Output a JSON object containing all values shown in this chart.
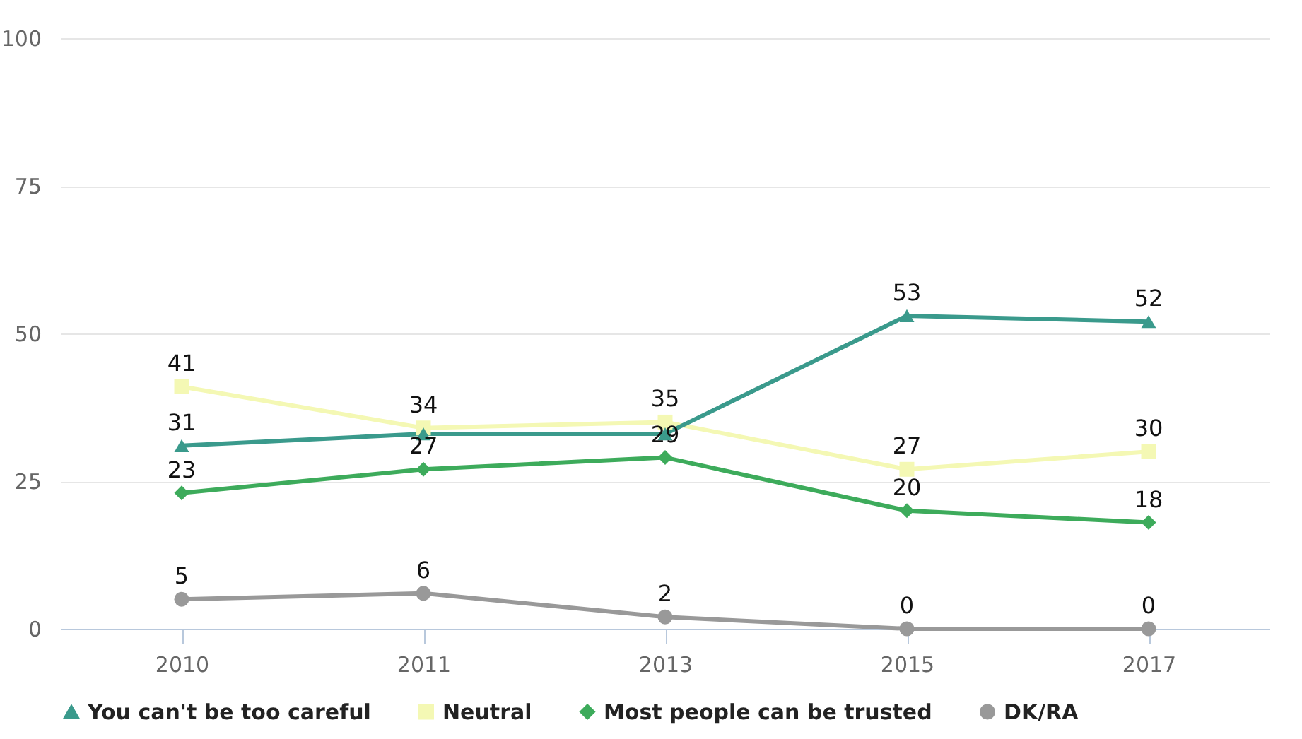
{
  "chart_data": {
    "type": "line",
    "categories": [
      "2010",
      "2011",
      "2013",
      "2015",
      "2017"
    ],
    "series": [
      {
        "name": "You can't be too careful",
        "color": "#3a9a8c",
        "marker": "triangle",
        "values": [
          31,
          33,
          33,
          53,
          52
        ],
        "value_labels": [
          "31",
          null,
          null,
          "53",
          "52"
        ]
      },
      {
        "name": "Neutral",
        "color": "#f4f8b4",
        "marker": "square",
        "values": [
          41,
          34,
          35,
          27,
          30
        ],
        "value_labels": [
          "41",
          "34",
          "35",
          "27",
          "30"
        ]
      },
      {
        "name": "Most people can be trusted",
        "color": "#3dab5b",
        "marker": "diamond",
        "values": [
          23,
          27,
          29,
          20,
          18
        ],
        "value_labels": [
          "23",
          "27",
          "29",
          "20",
          "18"
        ]
      },
      {
        "name": "DK/RA",
        "color": "#999999",
        "marker": "circle",
        "values": [
          5,
          6,
          2,
          0,
          0
        ],
        "value_labels": [
          "5",
          "6",
          "2",
          "0",
          "0"
        ]
      }
    ],
    "ylim": [
      0,
      100
    ],
    "yticks": [
      0,
      25,
      50,
      75,
      100
    ],
    "grid": "y",
    "legend": "bottom"
  }
}
